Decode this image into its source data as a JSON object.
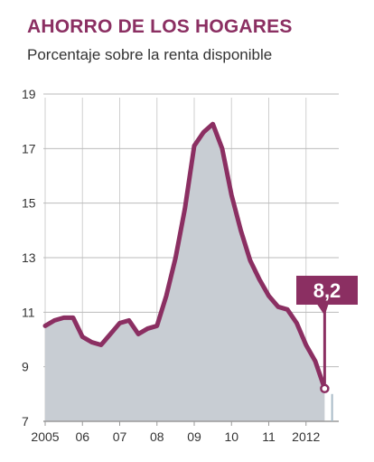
{
  "colors": {
    "accent": "#8B2F62",
    "area": "#C8CDD3",
    "grid": "#BBBBBB",
    "axis": "#999999",
    "text": "#333333",
    "year_ticks": "#A9BBC7"
  },
  "chart_data": {
    "type": "area",
    "title": "AHORRO DE LOS HOGARES",
    "subtitle": "Porcentaje sobre la renta disponible",
    "xlabel": "",
    "ylabel": "",
    "ylim": [
      7,
      19
    ],
    "xlim": [
      2005,
      2012.75
    ],
    "yticks": [
      7,
      9,
      11,
      13,
      15,
      17,
      19
    ],
    "ytick_labels": [
      "7",
      "9",
      "11",
      "13",
      "15",
      "17",
      "19"
    ],
    "xticks": [
      2005,
      2006,
      2007,
      2008,
      2009,
      2010,
      2011,
      2012
    ],
    "xtick_labels": [
      "2005",
      "06",
      "07",
      "08",
      "09",
      "10",
      "11",
      "2012"
    ],
    "grid": true,
    "x": [
      2005.0,
      2005.25,
      2005.5,
      2005.75,
      2006.0,
      2006.25,
      2006.5,
      2006.75,
      2007.0,
      2007.25,
      2007.5,
      2007.75,
      2008.0,
      2008.25,
      2008.5,
      2008.75,
      2009.0,
      2009.25,
      2009.5,
      2009.75,
      2010.0,
      2010.25,
      2010.5,
      2010.75,
      2011.0,
      2011.25,
      2011.5,
      2011.75,
      2012.0,
      2012.25,
      2012.5
    ],
    "values": [
      10.5,
      10.7,
      10.8,
      10.8,
      10.1,
      9.9,
      9.8,
      10.2,
      10.6,
      10.7,
      10.2,
      10.4,
      10.5,
      11.6,
      13.0,
      14.8,
      17.1,
      17.6,
      17.9,
      17.0,
      15.3,
      14.0,
      12.9,
      12.2,
      11.6,
      11.2,
      11.1,
      10.6,
      9.8,
      9.2,
      8.2
    ],
    "annotation": {
      "text": "8,2",
      "x": 2012.5,
      "y": 8.2
    }
  }
}
